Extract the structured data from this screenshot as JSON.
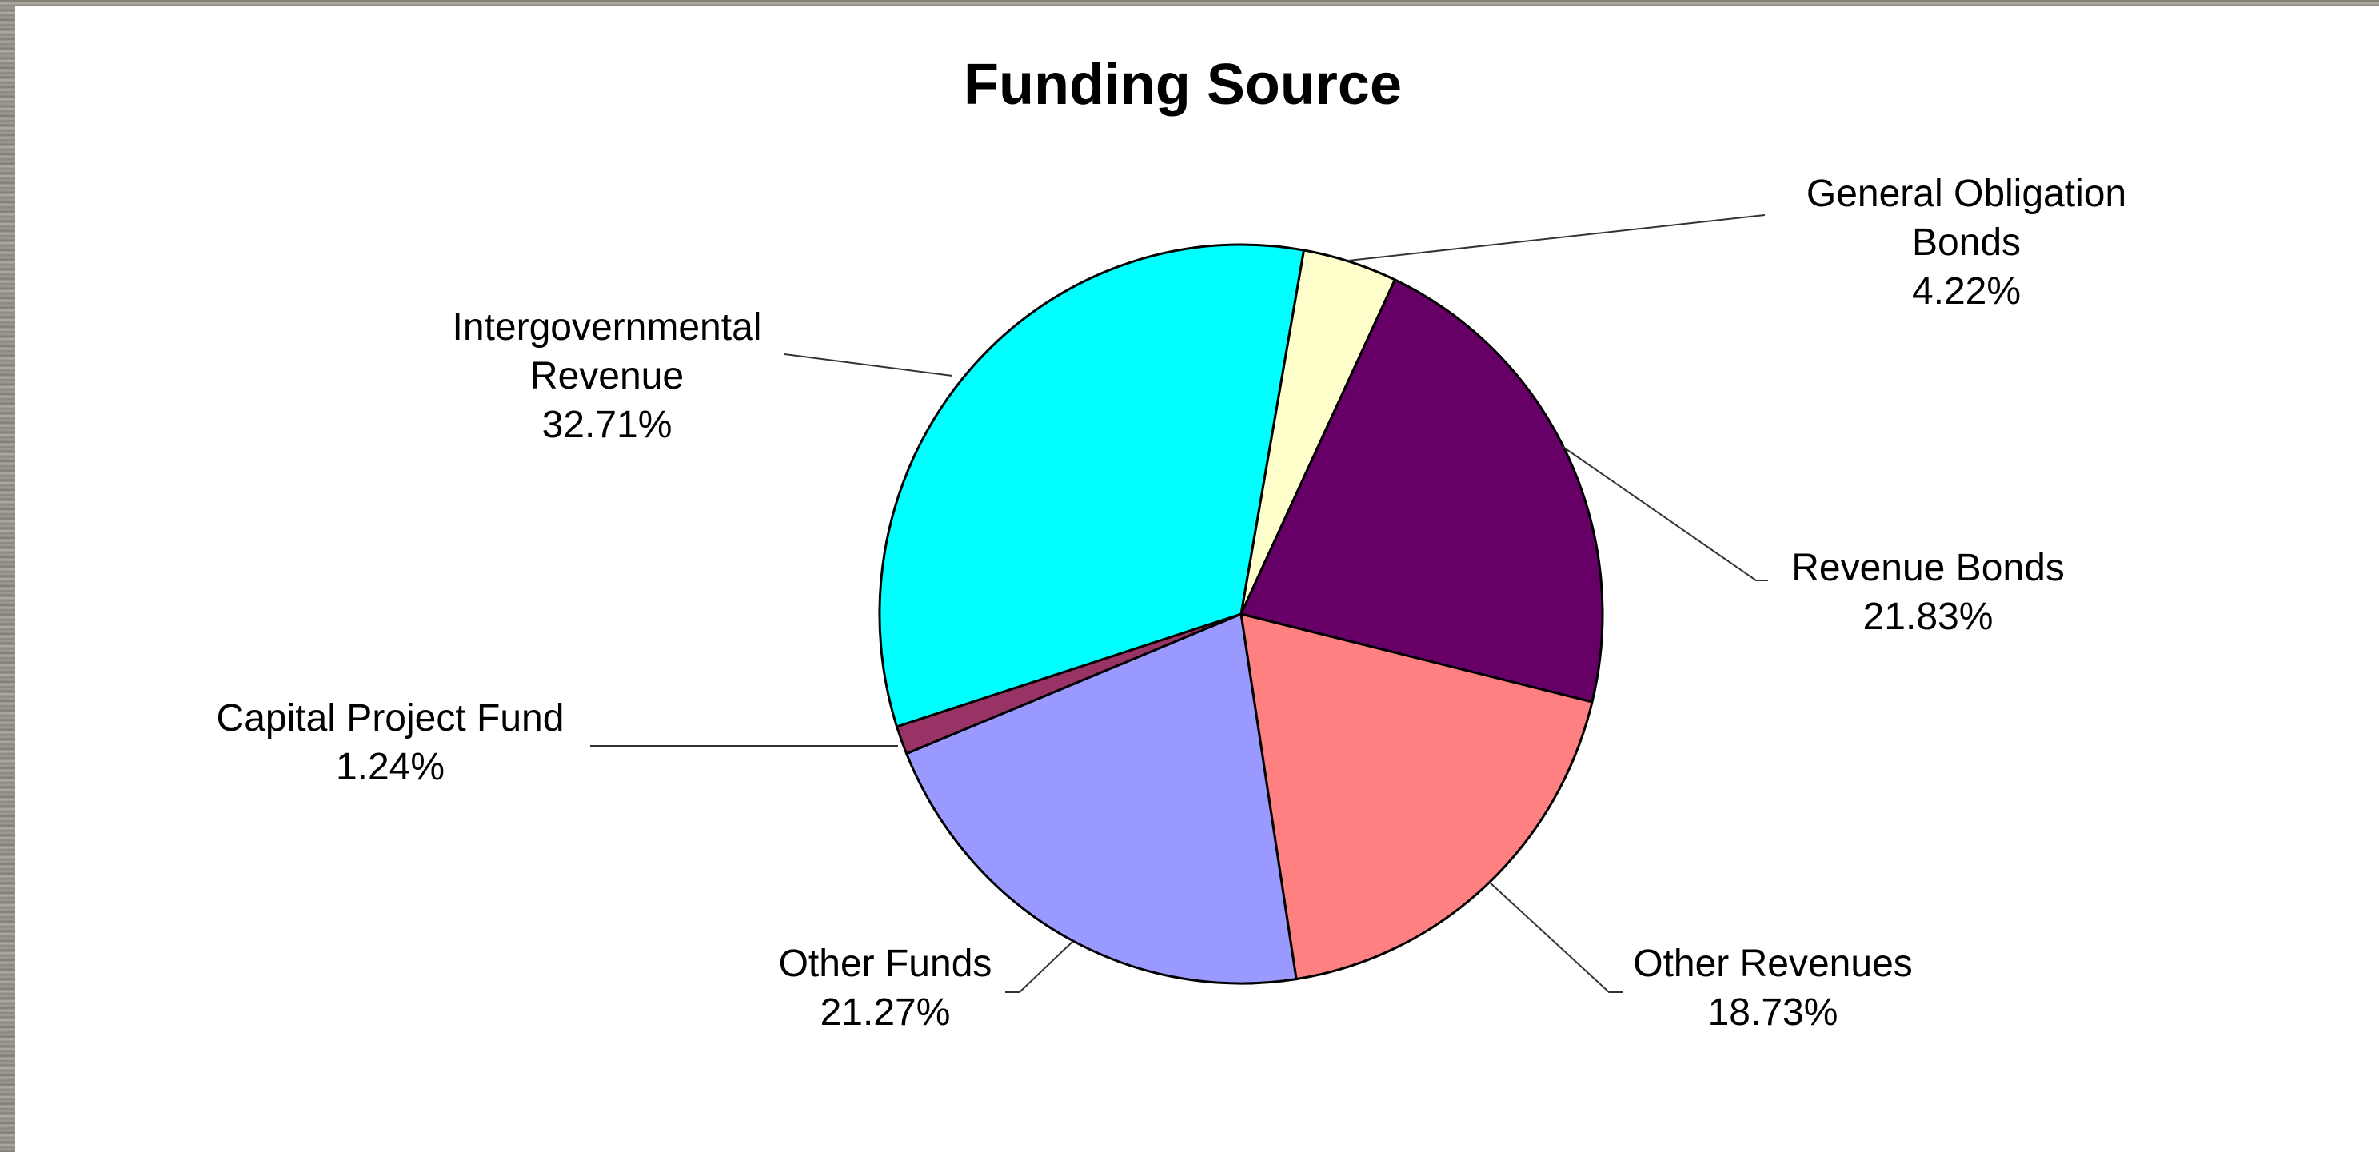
{
  "chart_data": {
    "type": "pie",
    "title": "Funding Source",
    "slices": [
      {
        "label": [
          "General Obligation",
          "Bonds"
        ],
        "value": 4.22,
        "value_text": "4.22%",
        "color": "#ffffcc"
      },
      {
        "label": [
          "Revenue Bonds"
        ],
        "value": 21.83,
        "value_text": "21.83%",
        "color": "#660066"
      },
      {
        "label": [
          "Other Revenues"
        ],
        "value": 18.73,
        "value_text": "18.73%",
        "color": "#ff8080"
      },
      {
        "label": [
          "Other Funds"
        ],
        "value": 21.27,
        "value_text": "21.27%",
        "color": "#9999ff"
      },
      {
        "label": [
          "Capital Project Fund"
        ],
        "value": 1.24,
        "value_text": "1.24%",
        "color": "#993366"
      },
      {
        "label": [
          "Intergovernmental",
          "Revenue"
        ],
        "value": 32.71,
        "value_text": "32.71%",
        "color": "#00ffff"
      }
    ],
    "legend": "none",
    "start_angle_deg": 10
  }
}
